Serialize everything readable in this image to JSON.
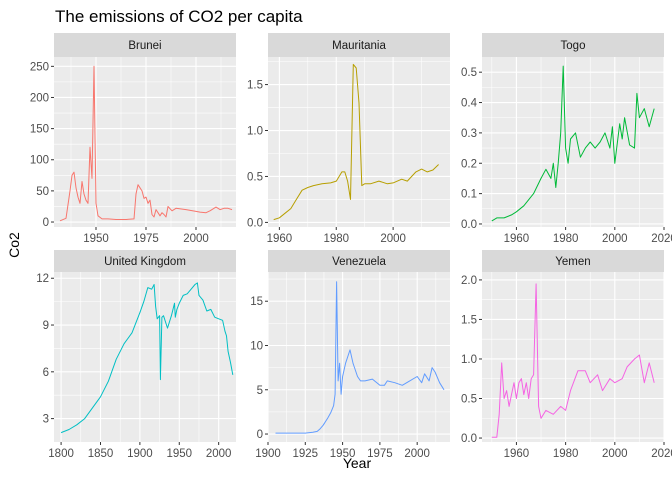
{
  "chart_data": {
    "type": "line",
    "title": "The emissions of CO2 per capita",
    "xlabel": "Year",
    "ylabel": "Co2",
    "grid": true,
    "legend": "none",
    "facets": [
      {
        "name": "Brunei",
        "color": "#F8766D",
        "xlim": [
          1929,
          2020
        ],
        "ylim": [
          -8,
          265
        ],
        "xticks": [
          1950,
          1975,
          2000
        ],
        "yticks": [
          0,
          50,
          100,
          150,
          200,
          250
        ],
        "x": [
          1932,
          1935,
          1937,
          1938,
          1939,
          1940,
          1941,
          1942,
          1943,
          1944,
          1945,
          1946,
          1947,
          1948,
          1949,
          1950,
          1951,
          1953,
          1956,
          1960,
          1965,
          1969,
          1970,
          1971,
          1972,
          1973,
          1974,
          1975,
          1976,
          1977,
          1978,
          1979,
          1980,
          1981,
          1982,
          1983,
          1984,
          1985,
          1986,
          1988,
          1990,
          1995,
          2000,
          2002,
          2005,
          2007,
          2010,
          2012,
          2014,
          2016,
          2018
        ],
        "y": [
          2,
          6,
          50,
          75,
          80,
          55,
          40,
          30,
          65,
          45,
          35,
          30,
          120,
          70,
          250,
          30,
          10,
          5,
          5,
          4,
          4,
          5,
          45,
          60,
          55,
          50,
          38,
          40,
          30,
          35,
          12,
          8,
          20,
          15,
          10,
          15,
          12,
          8,
          25,
          18,
          22,
          20,
          17,
          16,
          15,
          18,
          24,
          20,
          22,
          22,
          20
        ]
      },
      {
        "name": "Mauritania",
        "color": "#B79F00",
        "xlim": [
          1956,
          2020
        ],
        "ylim": [
          -0.05,
          1.8
        ],
        "xticks": [
          1960,
          1980,
          2000
        ],
        "yticks": [
          0.0,
          0.5,
          1.0,
          1.5
        ],
        "x": [
          1958,
          1960,
          1962,
          1964,
          1966,
          1968,
          1970,
          1972,
          1975,
          1978,
          1980,
          1982,
          1983,
          1984,
          1985,
          1986,
          1987,
          1988,
          1989,
          1990,
          1992,
          1995,
          1998,
          2000,
          2003,
          2005,
          2008,
          2010,
          2012,
          2014,
          2016
        ],
        "y": [
          0.03,
          0.05,
          0.1,
          0.15,
          0.25,
          0.35,
          0.38,
          0.4,
          0.42,
          0.43,
          0.45,
          0.55,
          0.55,
          0.45,
          0.25,
          1.72,
          1.68,
          1.3,
          0.4,
          0.42,
          0.42,
          0.45,
          0.42,
          0.43,
          0.47,
          0.45,
          0.55,
          0.58,
          0.55,
          0.57,
          0.63
        ]
      },
      {
        "name": "Togo",
        "color": "#00BA38",
        "xlim": [
          1946,
          2020
        ],
        "ylim": [
          -0.01,
          0.55
        ],
        "xticks": [
          1960,
          1980,
          2000,
          2020
        ],
        "yticks": [
          0.0,
          0.1,
          0.2,
          0.3,
          0.4,
          0.5
        ],
        "x": [
          1950,
          1952,
          1955,
          1958,
          1960,
          1963,
          1965,
          1967,
          1970,
          1972,
          1974,
          1975,
          1976,
          1977,
          1978,
          1979,
          1980,
          1981,
          1982,
          1984,
          1986,
          1988,
          1990,
          1992,
          1994,
          1996,
          1998,
          1999,
          2000,
          2002,
          2003,
          2004,
          2006,
          2008,
          2009,
          2010,
          2012,
          2014,
          2016
        ],
        "y": [
          0.01,
          0.02,
          0.02,
          0.03,
          0.04,
          0.06,
          0.08,
          0.1,
          0.15,
          0.18,
          0.15,
          0.2,
          0.12,
          0.2,
          0.3,
          0.52,
          0.25,
          0.2,
          0.28,
          0.3,
          0.22,
          0.25,
          0.27,
          0.25,
          0.27,
          0.3,
          0.25,
          0.32,
          0.2,
          0.33,
          0.28,
          0.35,
          0.26,
          0.25,
          0.43,
          0.35,
          0.38,
          0.32,
          0.38
        ]
      },
      {
        "name": "United Kingdom",
        "color": "#00BFC4",
        "xlim": [
          1791,
          2022
        ],
        "ylim": [
          1.5,
          12.4
        ],
        "xticks": [
          1800,
          1850,
          1900,
          1950,
          2000
        ],
        "yticks": [
          3,
          6,
          9,
          12
        ],
        "x": [
          1800,
          1810,
          1820,
          1830,
          1840,
          1850,
          1860,
          1870,
          1880,
          1890,
          1900,
          1905,
          1910,
          1915,
          1918,
          1920,
          1922,
          1925,
          1926,
          1928,
          1930,
          1935,
          1940,
          1944,
          1945,
          1947,
          1950,
          1955,
          1960,
          1965,
          1970,
          1973,
          1975,
          1980,
          1985,
          1990,
          1995,
          2000,
          2005,
          2008,
          2010,
          2012,
          2015,
          2018
        ],
        "y": [
          2.1,
          2.3,
          2.6,
          3.0,
          3.7,
          4.4,
          5.4,
          6.8,
          7.8,
          8.5,
          9.8,
          10.5,
          11.4,
          11.3,
          11.6,
          10.2,
          9.4,
          9.6,
          5.5,
          9.5,
          9.6,
          8.8,
          9.6,
          10.4,
          9.5,
          10.0,
          10.4,
          10.9,
          11.0,
          11.3,
          11.6,
          11.7,
          10.9,
          10.6,
          9.9,
          10.0,
          9.5,
          9.4,
          9.3,
          8.6,
          8.3,
          7.3,
          6.6,
          5.8
        ]
      },
      {
        "name": "Venezuela",
        "color": "#619CFF",
        "xlim": [
          1900,
          2022
        ],
        "ylim": [
          -0.9,
          18.3
        ],
        "xticks": [
          1900,
          1925,
          1950,
          1975,
          2000
        ],
        "yticks": [
          0,
          5,
          10,
          15
        ],
        "x": [
          1905,
          1915,
          1925,
          1930,
          1933,
          1935,
          1937,
          1940,
          1942,
          1944,
          1945,
          1946,
          1947,
          1948,
          1949,
          1950,
          1952,
          1955,
          1957,
          1958,
          1960,
          1962,
          1965,
          1970,
          1975,
          1978,
          1980,
          1985,
          1990,
          1995,
          2000,
          2003,
          2005,
          2008,
          2010,
          2012,
          2015,
          2018
        ],
        "y": [
          0.1,
          0.1,
          0.1,
          0.2,
          0.3,
          0.6,
          1.0,
          1.8,
          2.4,
          3.2,
          4.5,
          17.2,
          6.0,
          8.0,
          4.5,
          6.5,
          8.0,
          9.5,
          8.0,
          7.5,
          6.5,
          6.0,
          6.0,
          6.2,
          5.5,
          5.5,
          6.0,
          5.8,
          5.5,
          6.0,
          6.5,
          5.8,
          6.8,
          6.0,
          7.5,
          7.0,
          5.8,
          5.0
        ]
      },
      {
        "name": "Yemen",
        "color": "#F564E3",
        "xlim": [
          1946,
          2020
        ],
        "ylim": [
          -0.05,
          2.1
        ],
        "xticks": [
          1960,
          1980,
          2000,
          2020
        ],
        "yticks": [
          0.0,
          0.5,
          1.0,
          1.5,
          2.0
        ],
        "x": [
          1950,
          1952,
          1953,
          1954,
          1955,
          1956,
          1957,
          1958,
          1959,
          1960,
          1961,
          1962,
          1963,
          1964,
          1965,
          1966,
          1967,
          1968,
          1969,
          1970,
          1972,
          1975,
          1978,
          1980,
          1982,
          1985,
          1988,
          1990,
          1993,
          1995,
          1998,
          2000,
          2003,
          2005,
          2008,
          2010,
          2012,
          2014,
          2016
        ],
        "y": [
          0.01,
          0.01,
          0.3,
          0.95,
          0.5,
          0.6,
          0.4,
          0.55,
          0.7,
          0.5,
          0.7,
          0.75,
          0.55,
          0.7,
          0.5,
          0.75,
          0.8,
          1.95,
          0.4,
          0.25,
          0.35,
          0.3,
          0.4,
          0.35,
          0.6,
          0.85,
          0.85,
          0.7,
          0.8,
          0.6,
          0.75,
          0.7,
          0.75,
          0.9,
          1.0,
          1.05,
          0.7,
          0.95,
          0.7
        ]
      }
    ]
  }
}
